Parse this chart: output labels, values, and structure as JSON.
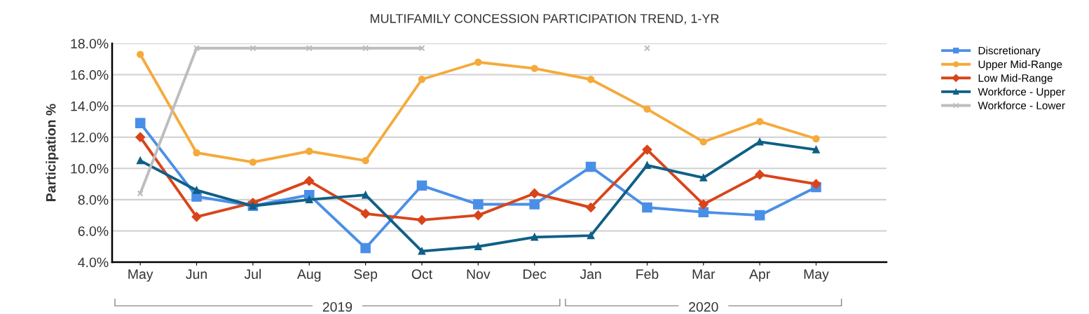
{
  "chart_data": {
    "type": "line",
    "title": "MULTIFAMILY CONCESSION PARTICIPATION TREND, 1-YR",
    "ylabel": "Participation %",
    "categories": [
      "May",
      "Jun",
      "Jul",
      "Aug",
      "Sep",
      "Oct",
      "Nov",
      "Dec",
      "Jan",
      "Feb",
      "Mar",
      "Apr",
      "May"
    ],
    "annotations": [
      "2019",
      "2020"
    ],
    "ylim": [
      4,
      18
    ],
    "yticks": [
      {
        "value": 4,
        "label": "4.0%"
      },
      {
        "value": 6,
        "label": "6.0%"
      },
      {
        "value": 8,
        "label": "8.0%"
      },
      {
        "value": 10,
        "label": "10.0%"
      },
      {
        "value": 12,
        "label": "12.0%"
      },
      {
        "value": 14,
        "label": "14.0%"
      },
      {
        "value": 16,
        "label": "16.0%"
      },
      {
        "value": 18,
        "label": "18.0%"
      }
    ],
    "grid": "y",
    "legend": "top right",
    "series": [
      {
        "name": "Discretionary",
        "color": "#4a8fe7",
        "marker": "square",
        "values": [
          12.9,
          8.2,
          7.6,
          8.3,
          4.9,
          8.9,
          7.7,
          7.7,
          10.1,
          7.5,
          7.2,
          7.0,
          8.8
        ]
      },
      {
        "name": "Upper Mid-Range",
        "color": "#f5aa3c",
        "marker": "circle",
        "values": [
          17.3,
          11.0,
          10.4,
          11.1,
          10.5,
          15.7,
          16.8,
          16.4,
          15.7,
          13.8,
          11.7,
          13.0,
          11.9
        ]
      },
      {
        "name": "Low Mid-Range",
        "color": "#d9441a",
        "marker": "diamond",
        "values": [
          12.0,
          6.9,
          7.8,
          9.2,
          7.1,
          6.7,
          7.0,
          8.4,
          7.5,
          11.2,
          7.7,
          9.6,
          9.0
        ]
      },
      {
        "name": "Workforce - Upper",
        "color": "#0f5f86",
        "marker": "triangle",
        "values": [
          10.5,
          8.6,
          7.6,
          8.0,
          8.3,
          4.7,
          5.0,
          5.6,
          5.7,
          10.2,
          9.4,
          11.7,
          11.2
        ]
      },
      {
        "name": "Workforce - Lower",
        "color": "#bdbdbd",
        "marker": "cross",
        "values": [
          8.4,
          17.7,
          17.7,
          17.7,
          17.7,
          17.7,
          null,
          null,
          null,
          17.7,
          null,
          null,
          null
        ]
      }
    ]
  }
}
